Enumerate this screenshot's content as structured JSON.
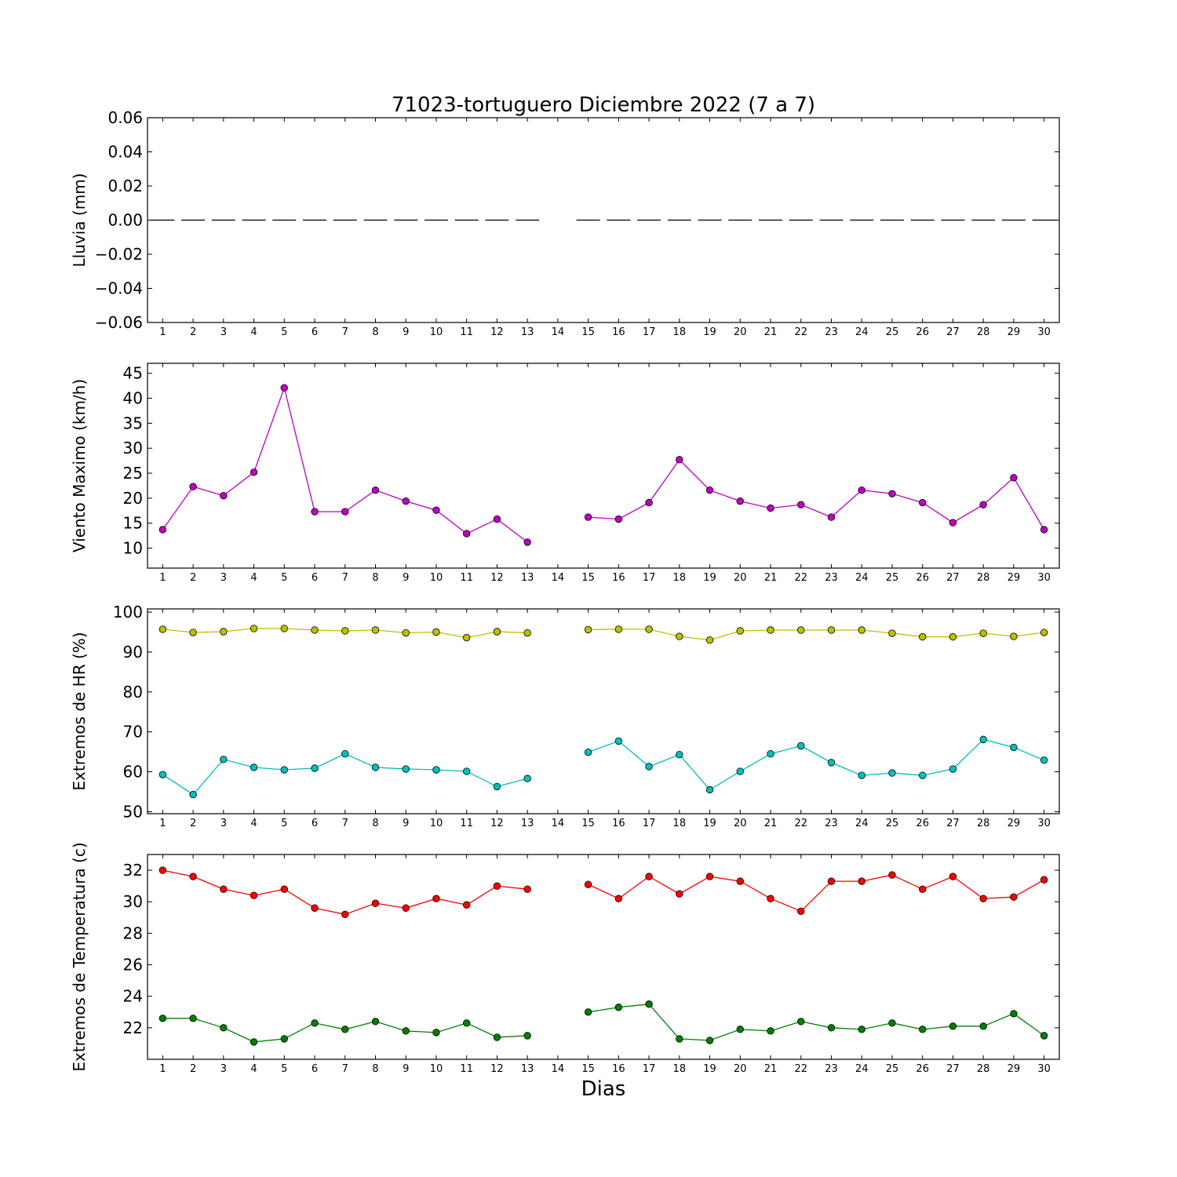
{
  "chart_data": {
    "title": "71023-tortuguero Diciembre 2022  (7 a 7)",
    "xlabel": "Dias",
    "x": [
      1,
      2,
      3,
      4,
      5,
      6,
      7,
      8,
      9,
      10,
      11,
      12,
      13,
      14,
      15,
      16,
      17,
      18,
      19,
      20,
      21,
      22,
      23,
      24,
      25,
      26,
      27,
      28,
      29,
      30
    ],
    "xlim": [
      0.5,
      30.5
    ],
    "panels": [
      {
        "type": "line",
        "ylabel": "Lluvia (mm)",
        "ylim": [
          -0.06,
          0.06
        ],
        "yticks": [
          -0.06,
          -0.04,
          -0.02,
          0.0,
          0.02,
          0.04,
          0.06
        ],
        "ytick_labels": [
          "−0.06",
          "−0.04",
          "−0.02",
          "0.00",
          "0.02",
          "0.04",
          "0.06"
        ],
        "series": [
          {
            "style": "bar-dash",
            "color": "#000000",
            "values": [
              0,
              0,
              0,
              0,
              0,
              0,
              0,
              0,
              0,
              0,
              0,
              0,
              0,
              null,
              0,
              0,
              0,
              0,
              0,
              0,
              0,
              0,
              0,
              0,
              0,
              0,
              0,
              0,
              0,
              0
            ]
          }
        ]
      },
      {
        "type": "line",
        "ylabel": "Viento Maximo (km/h)",
        "ylim": [
          6,
          47
        ],
        "yticks": [
          10,
          15,
          20,
          25,
          30,
          35,
          40,
          45
        ],
        "ytick_labels": [
          "10",
          "15",
          "20",
          "25",
          "30",
          "35",
          "40",
          "45"
        ],
        "series": [
          {
            "color": "#bf00bf",
            "values": [
              13.7,
              22.3,
              20.5,
              25.2,
              42.1,
              17.3,
              17.3,
              21.6,
              19.4,
              17.6,
              12.9,
              15.8,
              11.2,
              null,
              16.2,
              15.8,
              19.1,
              27.7,
              21.6,
              19.4,
              18,
              18.7,
              16.2,
              21.6,
              20.9,
              19.1,
              15.1,
              18.7,
              24.1,
              13.7
            ]
          }
        ]
      },
      {
        "type": "line",
        "ylabel": "Extremos de HR (%)",
        "ylim": [
          49.5,
          100.8
        ],
        "yticks": [
          50,
          60,
          70,
          80,
          90,
          100
        ],
        "ytick_labels": [
          "50",
          "60",
          "70",
          "80",
          "90",
          "100"
        ],
        "series": [
          {
            "color": "#bfbf00",
            "values": [
              95.7,
              94.9,
              95.1,
              95.9,
              95.9,
              95.5,
              95.3,
              95.5,
              94.8,
              95,
              93.6,
              95.1,
              94.8,
              null,
              95.6,
              95.7,
              95.7,
              93.9,
              93,
              95.3,
              95.5,
              95.5,
              95.5,
              95.5,
              94.7,
              93.8,
              93.8,
              94.7,
              93.9,
              94.9
            ]
          },
          {
            "color": "#00bfbf",
            "values": [
              59.3,
              54.3,
              63.1,
              61.1,
              60.5,
              60.9,
              64.5,
              61.1,
              60.7,
              60.5,
              60.1,
              56.3,
              58.3,
              null,
              64.9,
              67.7,
              61.3,
              64.3,
              55.5,
              60.1,
              64.5,
              66.5,
              62.3,
              59.1,
              59.7,
              59.1,
              60.7,
              68.1,
              66.1,
              62.9
            ]
          }
        ]
      },
      {
        "type": "line",
        "ylabel": "Extremos de Temperatura (c)",
        "ylim": [
          20,
          33
        ],
        "yticks": [
          22,
          24,
          26,
          28,
          30,
          32
        ],
        "ytick_labels": [
          "22",
          "24",
          "26",
          "28",
          "30",
          "32"
        ],
        "series": [
          {
            "color": "#ff0000",
            "values": [
              32,
              31.6,
              30.8,
              30.4,
              30.8,
              29.6,
              29.2,
              29.9,
              29.6,
              30.2,
              29.8,
              31,
              30.8,
              null,
              31.1,
              30.2,
              31.6,
              30.5,
              31.6,
              31.3,
              30.2,
              29.4,
              31.3,
              31.3,
              31.7,
              30.8,
              31.6,
              30.2,
              30.3,
              31.4
            ]
          },
          {
            "color": "#007f00",
            "values": [
              22.6,
              22.6,
              22,
              21.1,
              21.3,
              22.3,
              21.9,
              22.4,
              21.8,
              21.7,
              22.3,
              21.4,
              21.5,
              null,
              23,
              23.3,
              23.5,
              21.3,
              21.2,
              21.9,
              21.8,
              22.4,
              22,
              21.9,
              22.3,
              21.9,
              22.1,
              22.1,
              22.9,
              21.5
            ]
          }
        ]
      }
    ]
  }
}
